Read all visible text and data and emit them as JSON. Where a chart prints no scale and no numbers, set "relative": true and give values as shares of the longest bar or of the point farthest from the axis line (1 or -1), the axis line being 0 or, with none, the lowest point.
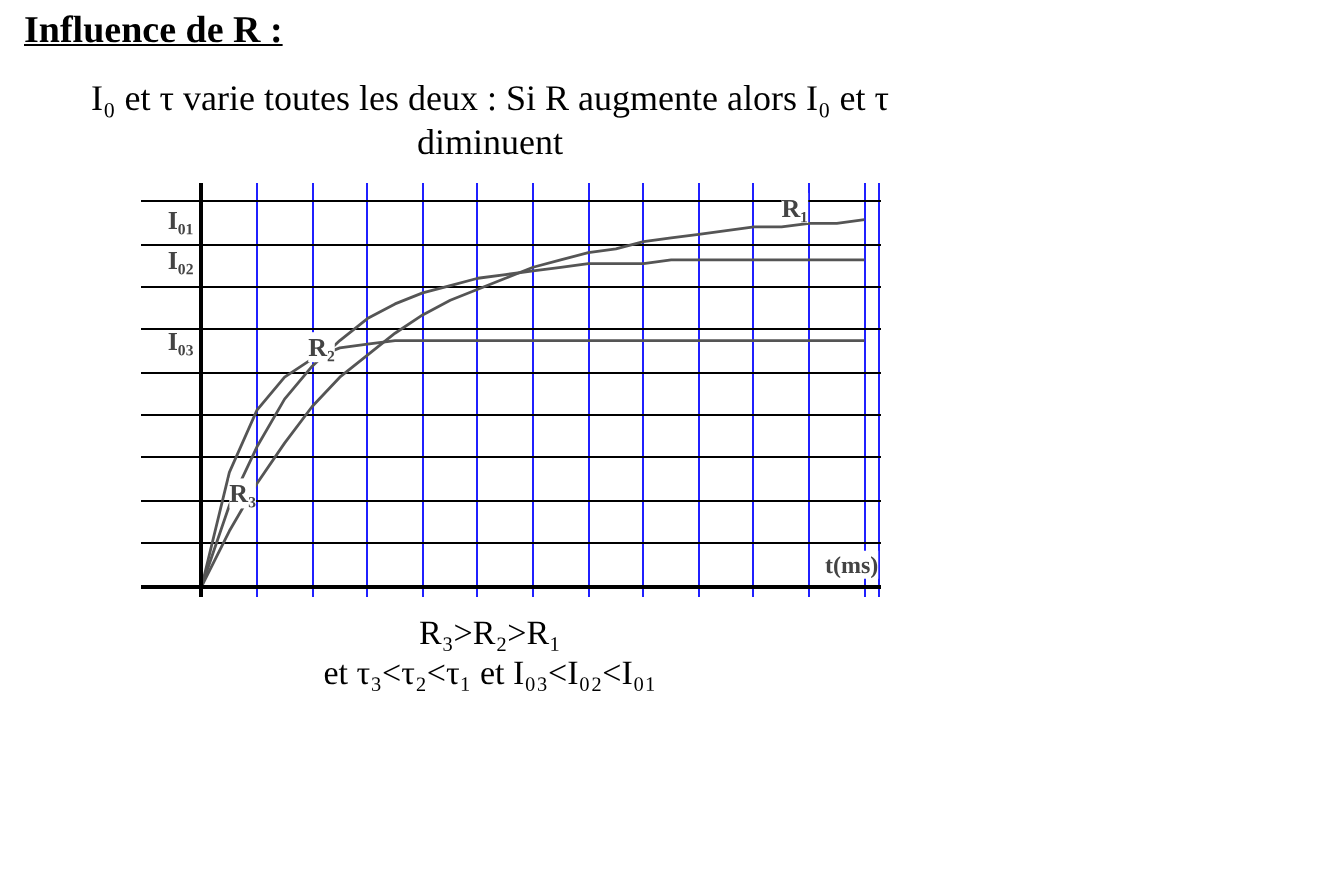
{
  "chart_data": {
    "type": "line",
    "title": "Influence de R :",
    "subtitle": "I₀  et τ varie toutes les deux : Si R augmente alors I₀  et τ diminuent",
    "xlabel": "t(ms)",
    "relative": true,
    "grid": true,
    "marker": "none",
    "line_style": "solid",
    "categories": [
      null,
      null,
      null,
      null,
      null,
      null,
      null,
      null,
      null,
      null,
      null,
      null,
      null,
      null,
      null,
      null,
      null,
      null,
      null,
      null,
      null,
      null,
      null,
      null,
      null
    ],
    "series": [
      {
        "name": "R₁",
        "color": "#555555",
        "values": [
          0,
          0.15,
          0.28,
          0.39,
          0.49,
          0.57,
          0.63,
          0.69,
          0.74,
          0.78,
          0.81,
          0.84,
          0.87,
          0.89,
          0.91,
          0.92,
          0.94,
          0.95,
          0.96,
          0.97,
          0.98,
          0.98,
          0.99,
          0.99,
          1
        ]
      },
      {
        "name": "R₂",
        "color": "#555555",
        "values": [
          0,
          0.22,
          0.38,
          0.51,
          0.6,
          0.67,
          0.73,
          0.77,
          0.8,
          0.82,
          0.84,
          0.85,
          0.86,
          0.87,
          0.88,
          0.88,
          0.88,
          0.89,
          0.89,
          0.89,
          0.89,
          0.89,
          0.89,
          0.89,
          0.89
        ]
      },
      {
        "name": "R₃",
        "color": "#555555",
        "values": [
          0,
          0.31,
          0.48,
          0.57,
          0.62,
          0.65,
          0.66,
          0.67,
          0.67,
          0.67,
          0.67,
          0.67,
          0.67,
          0.67,
          0.67,
          0.67,
          0.67,
          0.67,
          0.67,
          0.67,
          0.67,
          0.67,
          0.67,
          0.67,
          0.67
        ]
      }
    ],
    "annotations": [
      "I₀₁",
      "I₀₂",
      "I₀₃",
      "R₃>R₂>R₁",
      "et   τ₃<τ₂<τ₁  et  I₀₃<I₀₂<I₀₁"
    ]
  }
}
